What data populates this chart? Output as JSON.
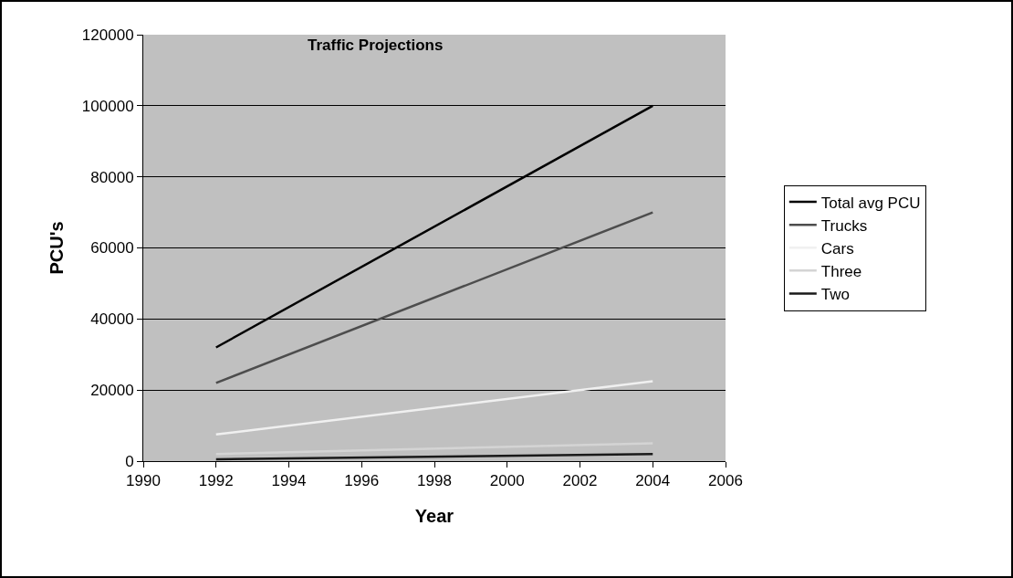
{
  "chart_data": {
    "type": "line",
    "title": "Traffic Projections",
    "xlabel": "Year",
    "ylabel": "PCU's",
    "x": [
      1992,
      2004
    ],
    "series": [
      {
        "name": "Total avg PCU",
        "color": "#000000",
        "values": [
          32000,
          100000
        ]
      },
      {
        "name": "Trucks",
        "color": "#4d4d4d",
        "values": [
          22000,
          70000
        ]
      },
      {
        "name": "Cars",
        "color": "#f0f0f0",
        "values": [
          7500,
          22500
        ]
      },
      {
        "name": "Three",
        "color": "#d4d4d4",
        "values": [
          2000,
          5000
        ]
      },
      {
        "name": "Two",
        "color": "#1a1a1a",
        "values": [
          500,
          2000
        ]
      }
    ],
    "xlim": [
      1990,
      2006
    ],
    "xticks": [
      1990,
      1992,
      1994,
      1996,
      1998,
      2000,
      2002,
      2004,
      2006
    ],
    "ylim": [
      0,
      120000
    ],
    "yticks": [
      0,
      20000,
      40000,
      60000,
      80000,
      100000,
      120000
    ],
    "grid": "y",
    "legend": "right",
    "marker": "none",
    "line_style": "solid"
  }
}
